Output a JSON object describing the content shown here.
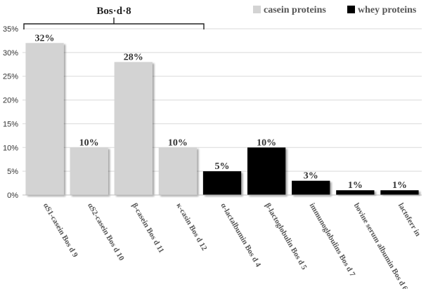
{
  "chart_data": {
    "type": "bar",
    "categories": [
      "αS1-casein Bos d 9",
      "αS2-casein Bos d 10",
      "β-casein Bos d 11",
      "κ-casin Bos d 12",
      "α-lactalbumin Bos d 4",
      "β-lactoglobulin Bos d 5",
      "immunoglobulins Bos d 7",
      "bovine serum albumin Bos d 6",
      "lactoferr in"
    ],
    "values": [
      32,
      10,
      28,
      10,
      5,
      10,
      3,
      1,
      1
    ],
    "value_labels": [
      "32%",
      "10%",
      "28%",
      "10%",
      "5%",
      "10%",
      "3%",
      "1%",
      "1%"
    ],
    "groups": [
      "casein proteins",
      "casein proteins",
      "casein proteins",
      "casein proteins",
      "whey proteins",
      "whey proteins",
      "whey proteins",
      "whey proteins",
      "whey proteins"
    ],
    "legend": [
      {
        "name": "casein proteins",
        "color": "#d3d3d3"
      },
      {
        "name": "whey proteins",
        "color": "#000000"
      }
    ],
    "legend_position": "top-right",
    "yticks": [
      "0%",
      "5%",
      "10%",
      "15%",
      "20%",
      "25%",
      "30%",
      "35%"
    ],
    "ylim": [
      0,
      35
    ],
    "grid": true,
    "bracket_label": "Bos·d·8",
    "title": "",
    "xlabel": "",
    "ylabel": ""
  }
}
